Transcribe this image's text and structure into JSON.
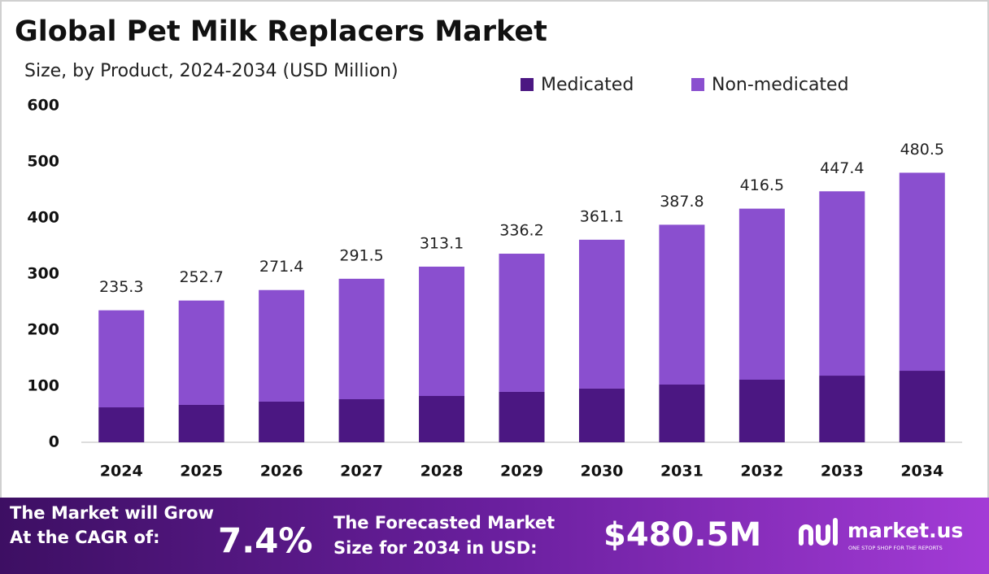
{
  "chart_data": {
    "type": "stacked_bar",
    "title": "Global Pet Milk Replacers Market",
    "subtitle": "Size, by Product, 2024-2034 (USD Million)",
    "categories": [
      "2024",
      "2025",
      "2026",
      "2027",
      "2028",
      "2029",
      "2030",
      "2031",
      "2032",
      "2033",
      "2034"
    ],
    "series": [
      {
        "name": "Medicated",
        "color": "#4b1782",
        "values": [
          62.3,
          66.7,
          72.5,
          76.8,
          82.6,
          89.9,
          95.7,
          102.9,
          111.6,
          118.8,
          127.5
        ]
      },
      {
        "name": "Non-medicated",
        "color": "#8a4fcf",
        "values": [
          173.0,
          186.0,
          198.9,
          214.7,
          230.5,
          246.3,
          265.4,
          284.9,
          304.9,
          328.6,
          353.0
        ]
      }
    ],
    "totals": [
      235.3,
      252.7,
      271.4,
      291.5,
      313.1,
      336.2,
      361.1,
      387.8,
      416.5,
      447.4,
      480.5
    ],
    "ylim": [
      0,
      600
    ],
    "yticks": [
      0,
      100,
      200,
      300,
      400,
      500,
      600
    ],
    "grid": false
  },
  "footer": {
    "cagr_text_1": "The Market will Grow",
    "cagr_text_2": "At the CAGR of:",
    "cagr_value": "7.4%",
    "forecast_text_1": "The Forecasted Market",
    "forecast_text_2": "Size for 2034 in USD:",
    "forecast_value": "$480.5M",
    "brand": "market.us",
    "brand_tagline": "ONE STOP SHOP FOR THE REPORTS"
  }
}
